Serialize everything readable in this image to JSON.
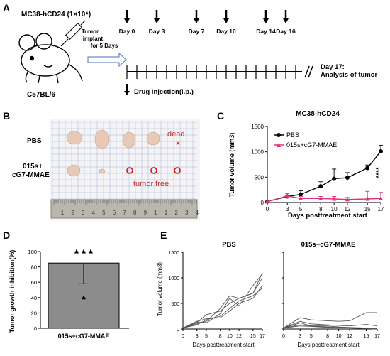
{
  "panel_letters": {
    "a": "A",
    "b": "B",
    "c": "C",
    "d": "D",
    "e": "E"
  },
  "panel_a": {
    "model": "MC38-hCD24 (1×10⁶)",
    "mouse": "C57BL/6",
    "implant": [
      "Tumor",
      "implant",
      "for 5 Days"
    ],
    "days": [
      "Day 0",
      "Day 3",
      "Day 7",
      "Day 10",
      "Day 14",
      "Day 16"
    ],
    "end": [
      "Day 17:",
      "Analysis of tumor"
    ],
    "injection_legend": "Drug Injection(i.p.)"
  },
  "panel_b": {
    "row1": "PBS",
    "row2": [
      "015s+",
      "cG7-MMAE"
    ],
    "dead": "dead",
    "tumor_free": "tumor free",
    "ruler_numbers": [
      "1",
      "2",
      "3",
      "4",
      "5",
      "6",
      "7",
      "8",
      "9",
      "1",
      "1",
      "2",
      "3",
      "4"
    ]
  },
  "colors": {
    "pbs": "#000000",
    "treat": "#e0307a",
    "mark": "#d61f1f",
    "grid": "#6e7fb8",
    "bar": "#8c8c8c"
  },
  "chart_data": [
    {
      "type": "line",
      "title": "MC38-hCD24",
      "xlabel": "Days posttreatment start",
      "ylabel": "Tumor volume (mm3)",
      "x": [
        0,
        3,
        5,
        8,
        10,
        12,
        15,
        17
      ],
      "xlim": [
        0,
        17
      ],
      "ylim": [
        0,
        1500
      ],
      "yticks": [
        0,
        500,
        1000,
        1500
      ],
      "series": [
        {
          "name": "PBS",
          "values": [
            20,
            120,
            160,
            320,
            470,
            490,
            680,
            1010
          ],
          "err": [
            10,
            60,
            70,
            90,
            190,
            100,
            60,
            120
          ]
        },
        {
          "name": "015s+cG7-MMAE",
          "values": [
            20,
            130,
            80,
            80,
            70,
            60,
            70,
            80
          ],
          "err": [
            10,
            50,
            40,
            40,
            50,
            40,
            150,
            120
          ]
        }
      ],
      "annotation": "****",
      "legend": "top-left"
    },
    {
      "type": "bar",
      "ylabel": "Tumor growth inhibition(%)",
      "categories": [
        "015s+cG7-MMAE"
      ],
      "values": [
        85
      ],
      "err": [
        27
      ],
      "points": [
        100,
        100,
        100,
        40
      ],
      "ylim": [
        0,
        100
      ],
      "yticks": [
        0,
        20,
        40,
        60,
        80,
        100
      ]
    },
    {
      "type": "line",
      "title": "PBS",
      "xlabel": "Days posttreatment start",
      "ylabel": "Tumor volume (mm3)",
      "x": [
        0,
        3,
        5,
        8,
        10,
        12,
        15,
        17
      ],
      "ylim": [
        0,
        1500
      ],
      "yticks": [
        0,
        500,
        1000,
        1500
      ],
      "series": [
        {
          "values": [
            20,
            100,
            150,
            400,
            650,
            600,
            700,
            1100
          ]
        },
        {
          "values": [
            20,
            140,
            120,
            300,
            600,
            450,
            850,
            1080
          ]
        },
        {
          "values": [
            20,
            120,
            280,
            350,
            500,
            600,
            700,
            1000
          ]
        },
        {
          "values": [
            20,
            80,
            180,
            250,
            400,
            550,
            650,
            800
          ]
        },
        {
          "values": [
            20,
            150,
            200,
            220,
            350,
            500,
            600,
            850
          ]
        }
      ]
    },
    {
      "type": "line",
      "title": "015s+cG7-MMAE",
      "xlabel": "Days posttreatment start",
      "x": [
        0,
        3,
        5,
        8,
        10,
        12,
        15,
        17
      ],
      "ylim": [
        0,
        1500
      ],
      "yticks": [
        0,
        500,
        1000,
        1500
      ],
      "series": [
        {
          "values": [
            20,
            220,
            180,
            160,
            150,
            160,
            320,
            320
          ]
        },
        {
          "values": [
            20,
            150,
            100,
            80,
            70,
            60,
            90,
            60
          ]
        },
        {
          "values": [
            20,
            120,
            60,
            60,
            40,
            30,
            20,
            10
          ]
        },
        {
          "values": [
            20,
            80,
            60,
            40,
            30,
            20,
            10,
            0
          ]
        },
        {
          "values": [
            20,
            60,
            50,
            30,
            20,
            20,
            10,
            0
          ]
        }
      ]
    }
  ]
}
